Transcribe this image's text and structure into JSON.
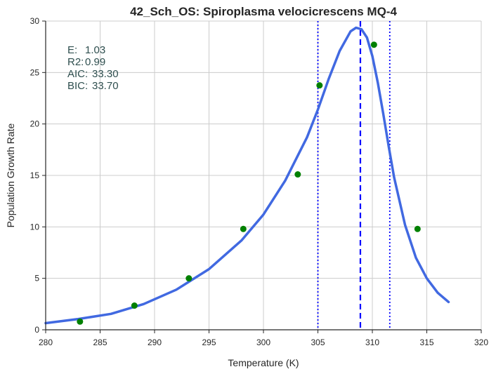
{
  "chart_data": {
    "type": "scatter",
    "title": "42_Sch_OS: Spiroplasma velocicrescens MQ-4",
    "xlabel": "Temperature (K)",
    "ylabel": "Population Growth Rate",
    "xlim": [
      280,
      320
    ],
    "ylim": [
      0,
      30
    ],
    "xticks": [
      280,
      285,
      290,
      295,
      300,
      305,
      310,
      315,
      320
    ],
    "yticks": [
      0,
      5,
      10,
      15,
      20,
      25,
      30
    ],
    "grid": true,
    "points": {
      "color": "#008000",
      "x": [
        283.15,
        288.15,
        293.15,
        298.15,
        303.15,
        305.15,
        310.15,
        314.15
      ],
      "y": [
        0.8,
        2.35,
        5.0,
        9.8,
        15.1,
        23.75,
        27.7,
        9.8
      ]
    },
    "fit_curve": {
      "color": "#4169e1",
      "x": [
        280.0,
        283,
        286,
        289,
        292,
        295,
        298,
        300,
        302,
        304,
        305,
        306,
        307,
        308,
        308.5,
        309,
        309.5,
        310,
        310.5,
        311,
        311.5,
        312,
        313,
        314,
        315,
        316,
        317
      ],
      "y": [
        0.65,
        1.05,
        1.55,
        2.5,
        3.9,
        5.9,
        8.7,
        11.2,
        14.5,
        18.7,
        21.4,
        24.4,
        27.1,
        29.0,
        29.35,
        29.2,
        28.4,
        26.6,
        24.0,
        21.0,
        17.8,
        14.8,
        10.2,
        7.0,
        5.0,
        3.6,
        2.7
      ]
    },
    "vlines": [
      {
        "x": 305.0,
        "style": "dotted",
        "color": "#0000ff"
      },
      {
        "x": 308.9,
        "style": "dashed",
        "color": "#0000ff"
      },
      {
        "x": 311.6,
        "style": "dotted",
        "color": "#0000ff"
      }
    ],
    "annotations": [
      {
        "label": "E:",
        "value": "1.03"
      },
      {
        "label": "R2:",
        "value": "0.99"
      },
      {
        "label": "AIC:",
        "value": "33.30"
      },
      {
        "label": "BIC:",
        "value": "33.70"
      }
    ],
    "annotation_color": "#2f4f4f"
  }
}
